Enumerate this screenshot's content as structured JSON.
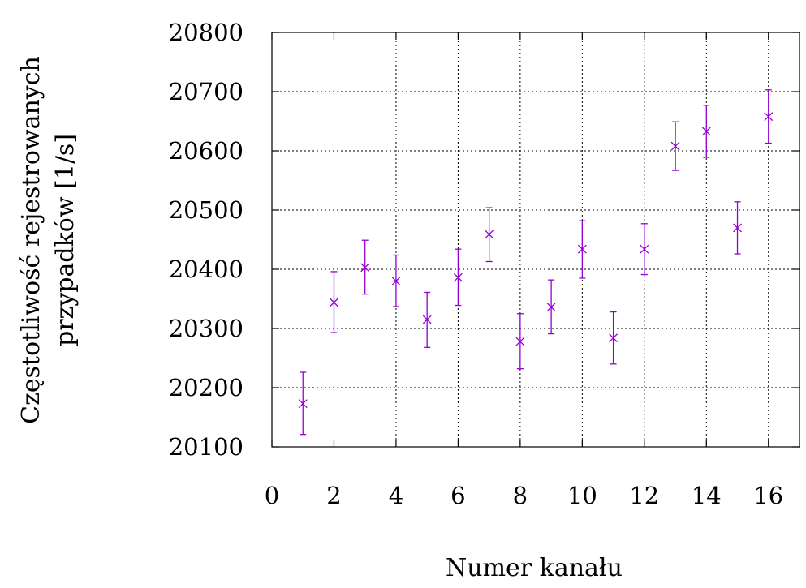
{
  "chart_data": {
    "type": "scatter",
    "title": "",
    "xlabel": "Numer kanału",
    "ylabel_lines": [
      "Częstotliwość rejestrowanych",
      "przypadków [1/s]"
    ],
    "xlim": [
      0,
      17
    ],
    "ylim": [
      20100,
      20800
    ],
    "xticks": [
      0,
      2,
      4,
      6,
      8,
      10,
      12,
      14,
      16
    ],
    "yticks": [
      20100,
      20200,
      20300,
      20400,
      20500,
      20600,
      20700,
      20800
    ],
    "grid": true,
    "marker": "x",
    "color": "#9400d3",
    "series": [
      {
        "x": [
          1,
          2,
          3,
          4,
          5,
          6,
          7,
          8,
          9,
          10,
          11,
          12,
          13,
          14,
          15,
          16
        ],
        "y": [
          20173,
          20344,
          20403,
          20380,
          20315,
          20386,
          20459,
          20278,
          20336,
          20434,
          20284,
          20434,
          20608,
          20633,
          20470,
          20658
        ],
        "err_low": [
          20121,
          20293,
          20358,
          20337,
          20268,
          20339,
          20413,
          20232,
          20291,
          20385,
          20240,
          20391,
          20567,
          20589,
          20426,
          20613
        ],
        "err_high": [
          20226,
          20396,
          20449,
          20424,
          20361,
          20434,
          20504,
          20325,
          20382,
          20482,
          20328,
          20477,
          20649,
          20677,
          20514,
          20703
        ]
      }
    ]
  }
}
